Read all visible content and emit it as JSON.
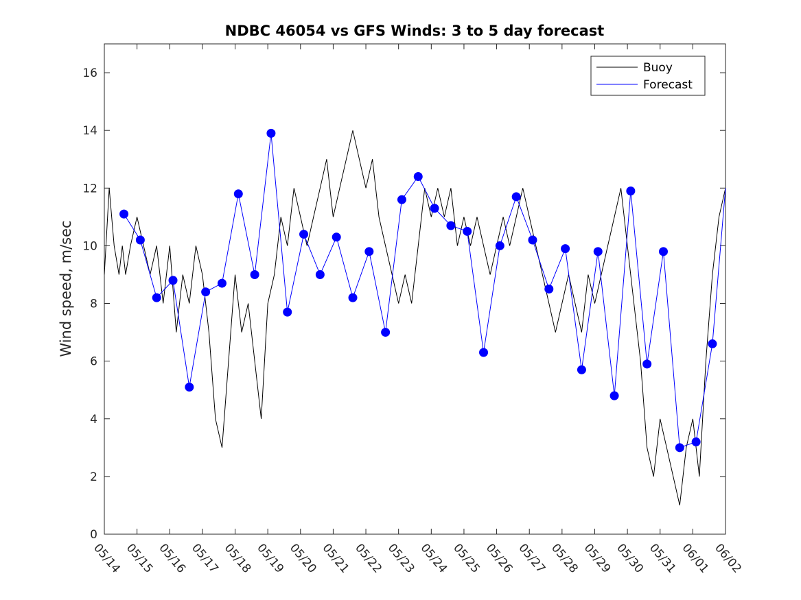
{
  "chart_data": {
    "type": "line",
    "title": "NDBC 46054 vs GFS Winds: 3 to 5 day forecast",
    "xlabel": "",
    "ylabel": "Wind speed, m/sec",
    "x_tick_labels": [
      "05/14",
      "05/15",
      "05/16",
      "05/17",
      "05/18",
      "05/19",
      "05/20",
      "05/21",
      "05/22",
      "05/23",
      "05/24",
      "05/25",
      "05/26",
      "05/27",
      "05/28",
      "05/29",
      "05/30",
      "05/31",
      "06/01",
      "06/02"
    ],
    "y_ticks": [
      0,
      2,
      4,
      6,
      8,
      10,
      12,
      14,
      16
    ],
    "xlim": [
      0,
      19
    ],
    "ylim": [
      0,
      17
    ],
    "grid": false,
    "legend_position": "top-right",
    "colors": {
      "buoy": "#000000",
      "forecast": "#0000ff"
    },
    "series": [
      {
        "name": "Buoy",
        "x": [
          0,
          0.15,
          0.3,
          0.45,
          0.55,
          0.65,
          0.8,
          1.0,
          1.2,
          1.4,
          1.6,
          1.8,
          2.0,
          2.2,
          2.4,
          2.6,
          2.8,
          3.0,
          3.2,
          3.4,
          3.6,
          3.8,
          4.0,
          4.2,
          4.4,
          4.6,
          4.8,
          5.0,
          5.2,
          5.4,
          5.6,
          5.8,
          6.0,
          6.2,
          6.4,
          6.6,
          6.8,
          7.0,
          7.2,
          7.4,
          7.6,
          7.8,
          8.0,
          8.2,
          8.4,
          8.6,
          8.8,
          9.0,
          9.2,
          9.4,
          9.6,
          9.8,
          10.0,
          10.2,
          10.4,
          10.6,
          10.8,
          11.0,
          11.2,
          11.4,
          11.6,
          11.8,
          12.0,
          12.2,
          12.4,
          12.6,
          12.8,
          13.0,
          13.2,
          13.4,
          13.6,
          13.8,
          14.0,
          14.2,
          14.4,
          14.6,
          14.8,
          15.0,
          15.2,
          15.4,
          15.6,
          15.8,
          16.0,
          16.2,
          16.4,
          16.6,
          16.8,
          17.0,
          17.2,
          17.4,
          17.6,
          17.8,
          18.0,
          18.2,
          18.4,
          18.6,
          18.8,
          19.0
        ],
        "values": [
          9,
          12,
          10,
          9,
          10,
          9,
          10,
          11,
          10,
          9,
          10,
          8,
          10,
          7,
          9,
          8,
          10,
          9,
          7,
          4,
          3,
          6,
          9,
          7,
          8,
          6,
          4,
          8,
          9,
          11,
          10,
          12,
          11,
          10,
          11,
          12,
          13,
          11,
          12,
          13,
          14,
          13,
          12,
          13,
          11,
          10,
          9,
          8,
          9,
          8,
          10,
          12,
          11,
          12,
          11,
          12,
          10,
          11,
          10,
          11,
          10,
          9,
          10,
          11,
          10,
          11,
          12,
          11,
          10,
          9,
          8,
          7,
          8,
          9,
          8,
          7,
          9,
          8,
          9,
          10,
          11,
          12,
          10,
          8,
          6,
          3,
          2,
          4,
          3,
          2,
          1,
          3,
          4,
          2,
          6,
          9,
          11,
          12
        ]
      },
      {
        "name": "Forecast",
        "x": [
          0.6,
          1.1,
          1.6,
          2.1,
          2.6,
          3.1,
          3.6,
          4.1,
          4.6,
          5.1,
          5.6,
          6.1,
          6.6,
          7.1,
          7.6,
          8.1,
          8.6,
          9.1,
          9.6,
          10.1,
          10.6,
          11.1,
          11.6,
          12.1,
          12.6,
          13.1,
          13.6,
          14.1,
          14.6,
          15.1,
          15.6,
          16.1,
          16.6,
          17.1,
          17.6,
          18.1,
          18.6,
          19.0
        ],
        "values": [
          11.1,
          10.2,
          8.2,
          8.8,
          5.1,
          8.4,
          8.7,
          11.8,
          9.0,
          13.9,
          7.7,
          10.4,
          9.0,
          10.3,
          8.2,
          9.8,
          7.0,
          11.6,
          12.4,
          11.3,
          10.7,
          10.5,
          6.3,
          10.0,
          11.7,
          10.2,
          8.5,
          9.9,
          5.7,
          9.8,
          4.8,
          11.9,
          5.9,
          9.8,
          3.0,
          3.2,
          6.6,
          12.0
        ]
      }
    ],
    "markers": {
      "x": [
        0.6,
        1.1,
        1.6,
        2.1,
        2.6,
        3.1,
        3.6,
        4.1,
        4.6,
        5.1,
        5.6,
        6.1,
        6.6,
        7.1,
        7.6,
        8.1,
        8.6,
        9.1,
        9.6,
        10.1,
        10.6,
        11.1,
        11.6,
        12.1,
        12.6,
        13.1,
        13.6,
        14.1,
        14.6,
        15.1,
        15.6,
        16.1,
        16.6,
        17.1,
        17.6,
        18.1,
        18.6
      ],
      "y": [
        11.1,
        10.2,
        8.2,
        8.8,
        5.1,
        8.4,
        8.7,
        11.8,
        9.0,
        13.9,
        7.7,
        10.4,
        9.0,
        10.3,
        8.2,
        9.8,
        7.0,
        11.6,
        12.4,
        11.3,
        10.7,
        10.5,
        6.3,
        10.0,
        11.7,
        10.2,
        8.5,
        9.9,
        5.7,
        9.8,
        4.8,
        11.9,
        5.9,
        9.8,
        3.0,
        3.2,
        6.6
      ]
    }
  }
}
